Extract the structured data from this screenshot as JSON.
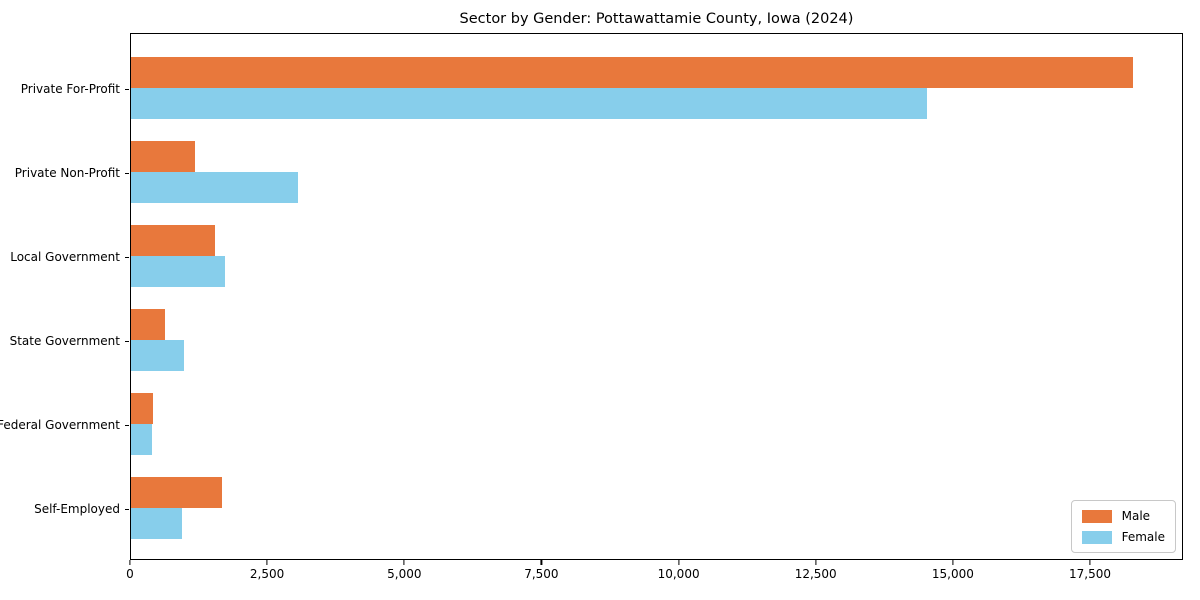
{
  "chart_data": {
    "type": "bar",
    "orientation": "horizontal",
    "title": "Sector by Gender: Pottawattamie County, Iowa (2024)",
    "categories": [
      "Private For-Profit",
      "Private Non-Profit",
      "Local Government",
      "State Government",
      "Federal Government",
      "Self-Employed"
    ],
    "series": [
      {
        "name": "Male",
        "color": "#e8783c",
        "values": [
          18260,
          1160,
          1530,
          620,
          400,
          1655
        ]
      },
      {
        "name": "Female",
        "color": "#87ceeb",
        "values": [
          14500,
          3040,
          1710,
          960,
          380,
          930
        ]
      }
    ],
    "xlabel": "",
    "ylabel": "",
    "xlim": [
      0,
      19140
    ],
    "xticks": [
      0,
      2500,
      5000,
      7500,
      10000,
      12500,
      15000,
      17500
    ],
    "xtick_labels": [
      "0",
      "2,500",
      "5,000",
      "7,500",
      "10,000",
      "12,500",
      "15,000",
      "17,500"
    ],
    "grid": false,
    "legend_position": "lower right"
  }
}
